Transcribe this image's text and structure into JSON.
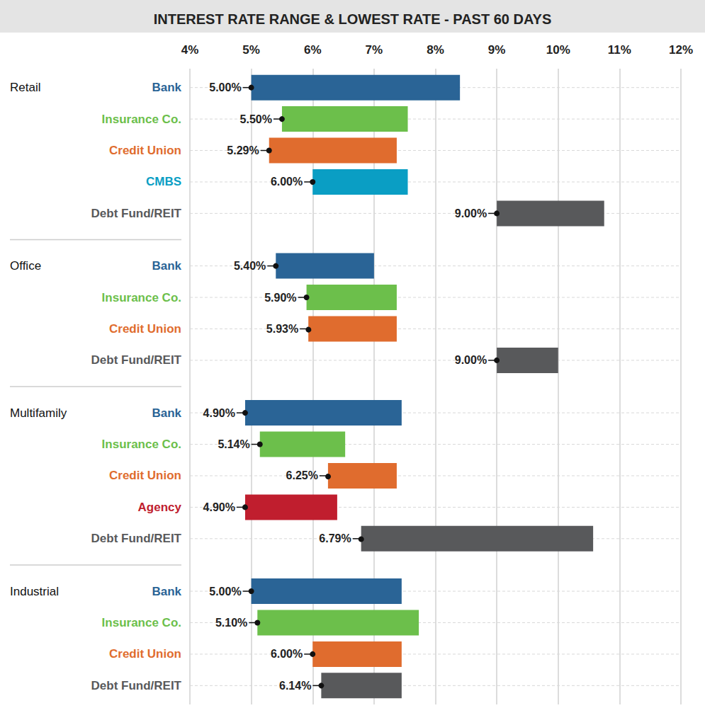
{
  "chart_data": {
    "type": "bar",
    "orientation": "horizontal",
    "title": "INTEREST RATE RANGE & LOWEST RATE - PAST 60 DAYS",
    "xlim": [
      4,
      12
    ],
    "xticks": [
      {
        "value": 4,
        "label": "4%"
      },
      {
        "value": 5,
        "label": "5%"
      },
      {
        "value": 6,
        "label": "6%"
      },
      {
        "value": 7,
        "label": "7%"
      },
      {
        "value": 8,
        "label": "8%"
      },
      {
        "value": 9,
        "label": "9%"
      },
      {
        "value": 10,
        "label": "10%"
      },
      {
        "value": 11,
        "label": "11%"
      },
      {
        "value": 12,
        "label": "12%"
      }
    ],
    "grid": true,
    "data_labels": true,
    "groups": [
      {
        "name": "Retail",
        "categories": [
          "Bank",
          "Insurance Co.",
          "Credit Union",
          "CMBS",
          "Debt Fund/REIT"
        ],
        "low": [
          5.0,
          5.5,
          5.29,
          6.0,
          9.0
        ],
        "high": [
          8.4,
          7.55,
          7.37,
          7.55,
          10.75
        ],
        "value_labels": [
          "5.00%",
          "5.50%",
          "5.29%",
          "6.00%",
          "9.00%"
        ],
        "colors": [
          "#2a6496",
          "#6cbf4b",
          "#e06c2e",
          "#0a9ec4",
          "#58595b"
        ]
      },
      {
        "name": "Office",
        "categories": [
          "Bank",
          "Insurance Co.",
          "Credit Union",
          "Debt Fund/REIT"
        ],
        "low": [
          5.4,
          5.9,
          5.93,
          9.0
        ],
        "high": [
          7.0,
          7.37,
          7.37,
          10.0
        ],
        "value_labels": [
          "5.40%",
          "5.90%",
          "5.93%",
          "9.00%"
        ],
        "colors": [
          "#2a6496",
          "#6cbf4b",
          "#e06c2e",
          "#58595b"
        ]
      },
      {
        "name": "Multifamily",
        "categories": [
          "Bank",
          "Insurance Co.",
          "Credit Union",
          "Agency",
          "Debt Fund/REIT"
        ],
        "low": [
          4.9,
          5.14,
          6.25,
          4.9,
          6.79
        ],
        "high": [
          7.45,
          6.53,
          7.37,
          6.4,
          10.57
        ],
        "value_labels": [
          "4.90%",
          "5.14%",
          "6.25%",
          "4.90%",
          "6.79%"
        ],
        "colors": [
          "#2a6496",
          "#6cbf4b",
          "#e06c2e",
          "#c01e2e",
          "#58595b"
        ]
      },
      {
        "name": "Industrial",
        "categories": [
          "Bank",
          "Insurance Co.",
          "Credit Union",
          "Debt Fund/REIT"
        ],
        "low": [
          5.0,
          5.1,
          6.0,
          6.14
        ],
        "high": [
          7.45,
          7.73,
          7.45,
          7.45
        ],
        "value_labels": [
          "5.00%",
          "5.10%",
          "6.00%",
          "6.14%"
        ],
        "colors": [
          "#2a6496",
          "#6cbf4b",
          "#e06c2e",
          "#58595b"
        ]
      }
    ]
  }
}
